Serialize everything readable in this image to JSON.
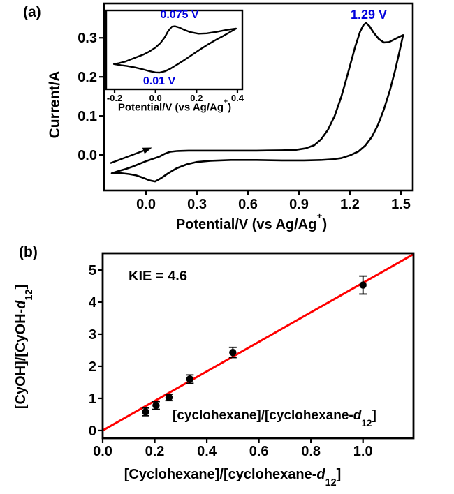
{
  "figure": {
    "panel_a": {
      "label": "(a)",
      "ylabel": "Current/A",
      "xlabel": {
        "prefix": "Potential/V (vs Ag/Ag",
        "sup": "+",
        "suffix": ")"
      },
      "x_ticks": [
        "0.0",
        "0.3",
        "0.6",
        "0.9",
        "1.2",
        "1.5"
      ],
      "y_ticks": [
        "0.0",
        "0.1",
        "0.2",
        "0.3"
      ],
      "peak_label": "1.29 V",
      "inset": {
        "xlabel": {
          "prefix": "Potential/V (vs Ag/Ag",
          "sup": "+",
          "suffix": ")"
        },
        "x_ticks": [
          "-0.2",
          "0.0",
          "0.2",
          "0.4"
        ],
        "anodic_peak_label": "0.075 V",
        "cathodic_peak_label": "0.01 V"
      }
    },
    "panel_b": {
      "label": "(b)",
      "kie_label": "KIE = 4.6",
      "ylabel": {
        "prefix": "[CyOH]/[CyOH-",
        "d": "d",
        "sub": "12",
        "suffix": "]"
      },
      "xlabel": {
        "prefix": "[Cyclohexane]/[cyclohexane-",
        "d": "d",
        "sub": "12",
        "suffix": "]"
      },
      "annotation": {
        "prefix": "[cyclohexane]/[cyclohexane-",
        "d": "d",
        "sub": "12",
        "suffix": "]"
      }
    }
  },
  "colors": {
    "axis": "#000000",
    "cv_curve": "#000000",
    "fit_line": "#ff0000",
    "blue_labels": "#0000dd",
    "marker": "#000000",
    "background": "#ffffff"
  },
  "chart_data": [
    {
      "id": "panel_a",
      "type": "line",
      "subtype": "cyclic_voltammogram",
      "xlabel": "Potential/V (vs Ag/Ag+)",
      "ylabel": "Current/A",
      "xlim": [
        -0.247,
        1.57
      ],
      "ylim": [
        -0.091,
        0.388
      ],
      "x_ticks": [
        0.0,
        0.3,
        0.6,
        0.9,
        1.2,
        1.5
      ],
      "y_ticks": [
        0.0,
        0.1,
        0.2,
        0.3
      ],
      "grid": false,
      "annotations": [
        {
          "text": "1.29 V",
          "x": 1.31,
          "y": 0.359,
          "color": "blue",
          "meaning": "anodic peak potential"
        }
      ],
      "scan_arrow": {
        "x1": -0.21,
        "y1": -0.021,
        "x2": 0.035,
        "y2": 0.019
      },
      "series": [
        {
          "name": "cyclic voltammogram sweep (closed loop, forward then return)",
          "x": [
            -0.202,
            -0.16,
            -0.12,
            -0.08,
            -0.04,
            0.0,
            0.04,
            0.08,
            0.11,
            0.14,
            0.18,
            0.25,
            0.35,
            0.5,
            0.65,
            0.8,
            0.88,
            0.94,
            0.99,
            1.03,
            1.07,
            1.11,
            1.15,
            1.19,
            1.23,
            1.26,
            1.28,
            1.295,
            1.315,
            1.34,
            1.37,
            1.4,
            1.43,
            1.47,
            1.513,
            1.49,
            1.465,
            1.435,
            1.4,
            1.365,
            1.33,
            1.29,
            1.25,
            1.2,
            1.15,
            1.1,
            1.03,
            0.93,
            0.8,
            0.65,
            0.5,
            0.38,
            0.3,
            0.24,
            0.18,
            0.13,
            0.09,
            0.053,
            0.02,
            -0.02,
            -0.06,
            -0.1,
            -0.14,
            -0.18,
            -0.202
          ],
          "y": [
            -0.047,
            -0.041,
            -0.036,
            -0.03,
            -0.023,
            -0.016,
            -0.01,
            -0.004,
            0.003,
            0.008,
            0.01,
            0.011,
            0.011,
            0.011,
            0.011,
            0.012,
            0.013,
            0.017,
            0.025,
            0.04,
            0.064,
            0.1,
            0.15,
            0.212,
            0.276,
            0.316,
            0.333,
            0.338,
            0.33,
            0.313,
            0.297,
            0.288,
            0.289,
            0.298,
            0.307,
            0.262,
            0.215,
            0.165,
            0.117,
            0.077,
            0.047,
            0.024,
            0.009,
            -0.001,
            -0.008,
            -0.011,
            -0.013,
            -0.014,
            -0.014,
            -0.013,
            -0.013,
            -0.015,
            -0.018,
            -0.024,
            -0.034,
            -0.047,
            -0.059,
            -0.068,
            -0.065,
            -0.058,
            -0.052,
            -0.049,
            -0.047,
            -0.046,
            -0.047
          ]
        }
      ],
      "inset": {
        "type": "line",
        "subtype": "cyclic_voltammogram",
        "xlabel": "Potential/V (vs Ag/Ag+)",
        "xlim": [
          -0.241,
          0.424
        ],
        "x_ticks": [
          -0.2,
          0.0,
          0.2,
          0.4
        ],
        "anodic_peak": {
          "text": "0.075 V",
          "x": 0.075
        },
        "cathodic_peak": {
          "text": "0.01 V",
          "x": 0.01
        },
        "series": [
          {
            "name": "reference redox couple CV (y normalized 0-1 of inset height)",
            "x": [
              -0.203,
              -0.18,
              -0.15,
              -0.12,
              -0.09,
              -0.06,
              -0.03,
              0.0,
              0.025,
              0.045,
              0.062,
              0.08,
              0.095,
              0.115,
              0.14,
              0.17,
              0.21,
              0.25,
              0.3,
              0.35,
              0.393,
              0.36,
              0.33,
              0.3,
              0.26,
              0.22,
              0.18,
              0.14,
              0.1,
              0.07,
              0.045,
              0.02,
              0.0,
              -0.03,
              -0.06,
              -0.1,
              -0.14,
              -0.17,
              -0.203
            ],
            "y_frac": [
              0.32,
              0.33,
              0.35,
              0.38,
              0.41,
              0.44,
              0.48,
              0.53,
              0.59,
              0.66,
              0.74,
              0.795,
              0.8,
              0.785,
              0.755,
              0.725,
              0.705,
              0.71,
              0.73,
              0.755,
              0.77,
              0.72,
              0.675,
              0.635,
              0.575,
              0.51,
              0.44,
              0.37,
              0.305,
              0.258,
              0.228,
              0.212,
              0.214,
              0.23,
              0.252,
              0.277,
              0.296,
              0.306,
              0.32
            ]
          }
        ]
      }
    },
    {
      "id": "panel_b",
      "type": "scatter",
      "xlabel": "[Cyclohexane]/[cyclohexane-d12]",
      "ylabel": "[CyOH]/[CyOH-d12]",
      "xlim": [
        0,
        1.194
      ],
      "ylim": [
        -0.24,
        5.52
      ],
      "x_ticks": [
        0.0,
        0.2,
        0.4,
        0.6,
        0.8,
        1.0
      ],
      "y_ticks": [
        0,
        1,
        2,
        3,
        4,
        5
      ],
      "grid": false,
      "kie": 4.6,
      "annotation": "KIE = 4.6",
      "points": [
        {
          "x": 0.165,
          "y": 0.58,
          "yerr": 0.12
        },
        {
          "x": 0.205,
          "y": 0.78,
          "yerr": 0.12
        },
        {
          "x": 0.255,
          "y": 1.03,
          "yerr": 0.1
        },
        {
          "x": 0.335,
          "y": 1.6,
          "yerr": 0.13
        },
        {
          "x": 0.5,
          "y": 2.43,
          "yerr": 0.16
        },
        {
          "x": 1.0,
          "y": 4.53,
          "yerr": 0.28
        }
      ],
      "fit_line": {
        "slope": 4.6,
        "intercept": 0,
        "color": "#ff0000",
        "through_origin": true
      }
    }
  ]
}
